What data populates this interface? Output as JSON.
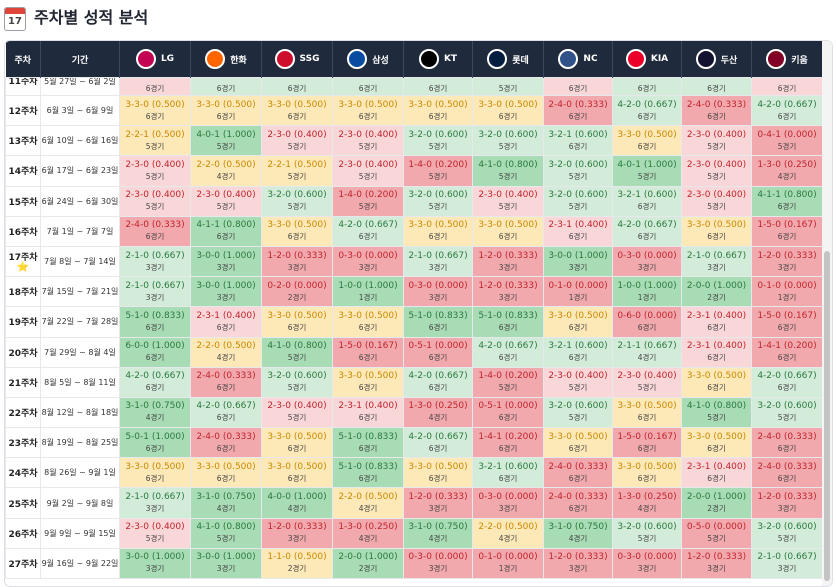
{
  "header": {
    "title": "주차별 성적 분석",
    "calendar_day": "17"
  },
  "table": {
    "columns": {
      "week": "주차",
      "period": "기간"
    },
    "teams": [
      {
        "name": "LG",
        "color": "#c30452"
      },
      {
        "name": "한화",
        "color": "#ff6600"
      },
      {
        "name": "SSG",
        "color": "#ce0e2d"
      },
      {
        "name": "삼성",
        "color": "#074ca1"
      },
      {
        "name": "KT",
        "color": "#000000"
      },
      {
        "name": "롯데",
        "color": "#041e42"
      },
      {
        "name": "NC",
        "color": "#315288"
      },
      {
        "name": "KIA",
        "color": "#ea0029"
      },
      {
        "name": "두산",
        "color": "#131230"
      },
      {
        "name": "키움",
        "color": "#820024"
      }
    ],
    "palette": {
      "green": "#d3ecd9",
      "green_dark": "#a8dcb5",
      "yellow": "#fde8b8",
      "pink": "#f9d7d9",
      "red": "#f2a9ad",
      "text_green": "#2a7a3e",
      "text_yellow": "#c98a00",
      "text_red": "#c0242c"
    },
    "rows": [
      {
        "week": "11주차",
        "period": "5월 27일 ~ 6월 2일",
        "cells": [
          [
            "",
            "6경기",
            "pink"
          ],
          [
            "",
            "6경기",
            "green"
          ],
          [
            "",
            "6경기",
            "green"
          ],
          [
            "",
            "6경기",
            "green"
          ],
          [
            "",
            "6경기",
            "green"
          ],
          [
            "",
            "5경기",
            "green"
          ],
          [
            "",
            "6경기",
            "pink"
          ],
          [
            "",
            "6경기",
            "green"
          ],
          [
            "",
            "6경기",
            "green"
          ],
          [
            "",
            "6경기",
            "pink"
          ]
        ]
      },
      {
        "week": "12주차",
        "period": "6월 3일 ~ 6월 9일",
        "cells": [
          [
            "3-3-0 (0.500)",
            "6경기",
            "yellow"
          ],
          [
            "3-3-0 (0.500)",
            "6경기",
            "yellow"
          ],
          [
            "3-3-0 (0.500)",
            "6경기",
            "yellow"
          ],
          [
            "3-3-0 (0.500)",
            "6경기",
            "yellow"
          ],
          [
            "3-3-0 (0.500)",
            "6경기",
            "yellow"
          ],
          [
            "3-3-0 (0.500)",
            "6경기",
            "yellow"
          ],
          [
            "2-4-0 (0.333)",
            "6경기",
            "red"
          ],
          [
            "4-2-0 (0.667)",
            "6경기",
            "green"
          ],
          [
            "2-4-0 (0.333)",
            "6경기",
            "red"
          ],
          [
            "4-2-0 (0.667)",
            "6경기",
            "green"
          ]
        ]
      },
      {
        "week": "13주차",
        "period": "6월 10일 ~ 6월 16일",
        "cells": [
          [
            "2-2-1 (0.500)",
            "5경기",
            "yellow"
          ],
          [
            "4-0-1 (1.000)",
            "5경기",
            "green_dark"
          ],
          [
            "2-3-0 (0.400)",
            "5경기",
            "pink"
          ],
          [
            "2-3-0 (0.400)",
            "5경기",
            "pink"
          ],
          [
            "3-2-0 (0.600)",
            "5경기",
            "green"
          ],
          [
            "3-2-0 (0.600)",
            "5경기",
            "green"
          ],
          [
            "3-2-1 (0.600)",
            "6경기",
            "green"
          ],
          [
            "3-3-0 (0.500)",
            "6경기",
            "yellow"
          ],
          [
            "2-3-0 (0.400)",
            "5경기",
            "pink"
          ],
          [
            "0-4-1 (0.000)",
            "5경기",
            "red"
          ]
        ]
      },
      {
        "week": "14주차",
        "period": "6월 17일 ~ 6월 23일",
        "cells": [
          [
            "2-3-0 (0.400)",
            "5경기",
            "pink"
          ],
          [
            "2-2-0 (0.500)",
            "4경기",
            "yellow"
          ],
          [
            "2-2-1 (0.500)",
            "5경기",
            "yellow"
          ],
          [
            "2-3-0 (0.400)",
            "5경기",
            "pink"
          ],
          [
            "1-4-0 (0.200)",
            "5경기",
            "red"
          ],
          [
            "4-1-0 (0.800)",
            "5경기",
            "green_dark"
          ],
          [
            "3-2-0 (0.600)",
            "5경기",
            "green"
          ],
          [
            "4-0-1 (1.000)",
            "5경기",
            "green_dark"
          ],
          [
            "2-3-0 (0.400)",
            "5경기",
            "pink"
          ],
          [
            "1-3-0 (0.250)",
            "4경기",
            "red"
          ]
        ]
      },
      {
        "week": "15주차",
        "period": "6월 24일 ~ 6월 30일",
        "cells": [
          [
            "2-3-0 (0.400)",
            "5경기",
            "pink"
          ],
          [
            "2-3-0 (0.400)",
            "5경기",
            "pink"
          ],
          [
            "3-2-0 (0.600)",
            "5경기",
            "green"
          ],
          [
            "1-4-0 (0.200)",
            "5경기",
            "red"
          ],
          [
            "3-2-0 (0.600)",
            "5경기",
            "green"
          ],
          [
            "2-3-0 (0.400)",
            "5경기",
            "pink"
          ],
          [
            "3-2-0 (0.600)",
            "5경기",
            "green"
          ],
          [
            "3-2-1 (0.600)",
            "6경기",
            "green"
          ],
          [
            "2-3-0 (0.400)",
            "5경기",
            "pink"
          ],
          [
            "4-1-1 (0.800)",
            "6경기",
            "green_dark"
          ]
        ]
      },
      {
        "week": "16주차",
        "period": "7월 1일 ~ 7월 7일",
        "cells": [
          [
            "2-4-0 (0.333)",
            "6경기",
            "red"
          ],
          [
            "4-1-1 (0.800)",
            "6경기",
            "green_dark"
          ],
          [
            "3-3-0 (0.500)",
            "6경기",
            "yellow"
          ],
          [
            "4-2-0 (0.667)",
            "6경기",
            "green"
          ],
          [
            "3-3-0 (0.500)",
            "6경기",
            "yellow"
          ],
          [
            "3-3-0 (0.500)",
            "6경기",
            "yellow"
          ],
          [
            "2-3-1 (0.400)",
            "6경기",
            "pink"
          ],
          [
            "4-2-0 (0.667)",
            "6경기",
            "green"
          ],
          [
            "3-3-0 (0.500)",
            "6경기",
            "yellow"
          ],
          [
            "1-5-0 (0.167)",
            "6경기",
            "red"
          ]
        ]
      },
      {
        "week": "17주차",
        "star": "⭐",
        "period": "7월 8일 ~ 7월 14일",
        "cells": [
          [
            "2-1-0 (0.667)",
            "3경기",
            "green"
          ],
          [
            "3-0-0 (1.000)",
            "3경기",
            "green_dark"
          ],
          [
            "1-2-0 (0.333)",
            "3경기",
            "red"
          ],
          [
            "0-3-0 (0.000)",
            "3경기",
            "red"
          ],
          [
            "2-1-0 (0.667)",
            "3경기",
            "green"
          ],
          [
            "1-2-0 (0.333)",
            "3경기",
            "red"
          ],
          [
            "3-0-0 (1.000)",
            "3경기",
            "green_dark"
          ],
          [
            "0-3-0 (0.000)",
            "3경기",
            "red"
          ],
          [
            "2-1-0 (0.667)",
            "3경기",
            "green"
          ],
          [
            "1-2-0 (0.333)",
            "3경기",
            "red"
          ]
        ]
      },
      {
        "week": "18주차",
        "period": "7월 15일 ~ 7월 21일",
        "cells": [
          [
            "2-1-0 (0.667)",
            "3경기",
            "green"
          ],
          [
            "3-0-0 (1.000)",
            "3경기",
            "green_dark"
          ],
          [
            "0-2-0 (0.000)",
            "2경기",
            "red"
          ],
          [
            "1-0-0 (1.000)",
            "1경기",
            "green_dark"
          ],
          [
            "0-3-0 (0.000)",
            "3경기",
            "red"
          ],
          [
            "1-2-0 (0.333)",
            "3경기",
            "red"
          ],
          [
            "0-1-0 (0.000)",
            "1경기",
            "red"
          ],
          [
            "1-0-0 (1.000)",
            "1경기",
            "green_dark"
          ],
          [
            "2-0-0 (1.000)",
            "2경기",
            "green_dark"
          ],
          [
            "0-1-0 (0.000)",
            "1경기",
            "red"
          ]
        ]
      },
      {
        "week": "19주차",
        "period": "7월 22일 ~ 7월 28일",
        "cells": [
          [
            "5-1-0 (0.833)",
            "6경기",
            "green_dark"
          ],
          [
            "2-3-1 (0.400)",
            "6경기",
            "pink"
          ],
          [
            "3-3-0 (0.500)",
            "6경기",
            "yellow"
          ],
          [
            "3-3-0 (0.500)",
            "6경기",
            "yellow"
          ],
          [
            "5-1-0 (0.833)",
            "6경기",
            "green_dark"
          ],
          [
            "5-1-0 (0.833)",
            "6경기",
            "green_dark"
          ],
          [
            "3-3-0 (0.500)",
            "6경기",
            "yellow"
          ],
          [
            "0-6-0 (0.000)",
            "6경기",
            "red"
          ],
          [
            "2-3-1 (0.400)",
            "6경기",
            "pink"
          ],
          [
            "1-5-0 (0.167)",
            "6경기",
            "red"
          ]
        ]
      },
      {
        "week": "20주차",
        "period": "7월 29일 ~ 8월 4일",
        "cells": [
          [
            "6-0-0 (1.000)",
            "6경기",
            "green_dark"
          ],
          [
            "2-2-0 (0.500)",
            "4경기",
            "yellow"
          ],
          [
            "4-1-0 (0.800)",
            "5경기",
            "green_dark"
          ],
          [
            "1-5-0 (0.167)",
            "6경기",
            "red"
          ],
          [
            "0-5-1 (0.000)",
            "6경기",
            "red"
          ],
          [
            "4-2-0 (0.667)",
            "6경기",
            "green"
          ],
          [
            "3-2-1 (0.600)",
            "6경기",
            "green"
          ],
          [
            "2-1-1 (0.667)",
            "4경기",
            "green"
          ],
          [
            "2-3-1 (0.400)",
            "6경기",
            "pink"
          ],
          [
            "1-4-1 (0.200)",
            "6경기",
            "red"
          ]
        ]
      },
      {
        "week": "21주차",
        "period": "8월 5일 ~ 8월 11일",
        "cells": [
          [
            "4-2-0 (0.667)",
            "6경기",
            "green"
          ],
          [
            "2-4-0 (0.333)",
            "6경기",
            "red"
          ],
          [
            "3-2-0 (0.600)",
            "5경기",
            "green"
          ],
          [
            "3-3-0 (0.500)",
            "6경기",
            "yellow"
          ],
          [
            "4-2-0 (0.667)",
            "6경기",
            "green"
          ],
          [
            "1-4-0 (0.200)",
            "5경기",
            "red"
          ],
          [
            "2-3-0 (0.400)",
            "5경기",
            "pink"
          ],
          [
            "2-3-0 (0.400)",
            "5경기",
            "pink"
          ],
          [
            "3-3-0 (0.500)",
            "6경기",
            "yellow"
          ],
          [
            "4-2-0 (0.667)",
            "6경기",
            "green"
          ]
        ]
      },
      {
        "week": "22주차",
        "period": "8월 12일 ~ 8월 18일",
        "cells": [
          [
            "3-1-0 (0.750)",
            "4경기",
            "green_dark"
          ],
          [
            "4-2-0 (0.667)",
            "6경기",
            "green"
          ],
          [
            "2-3-0 (0.400)",
            "5경기",
            "pink"
          ],
          [
            "2-3-1 (0.400)",
            "6경기",
            "pink"
          ],
          [
            "1-3-0 (0.250)",
            "4경기",
            "red"
          ],
          [
            "0-5-1 (0.000)",
            "6경기",
            "red"
          ],
          [
            "3-2-0 (0.600)",
            "5경기",
            "green"
          ],
          [
            "3-3-0 (0.500)",
            "6경기",
            "yellow"
          ],
          [
            "4-1-0 (0.800)",
            "5경기",
            "green_dark"
          ],
          [
            "3-2-0 (0.600)",
            "5경기",
            "green"
          ]
        ]
      },
      {
        "week": "23주차",
        "period": "8월 19일 ~ 8월 25일",
        "cells": [
          [
            "5-0-1 (1.000)",
            "6경기",
            "green_dark"
          ],
          [
            "2-4-0 (0.333)",
            "6경기",
            "red"
          ],
          [
            "3-3-0 (0.500)",
            "6경기",
            "yellow"
          ],
          [
            "5-1-0 (0.833)",
            "6경기",
            "green_dark"
          ],
          [
            "4-2-0 (0.667)",
            "6경기",
            "green"
          ],
          [
            "1-4-1 (0.200)",
            "6경기",
            "red"
          ],
          [
            "3-3-0 (0.500)",
            "6경기",
            "yellow"
          ],
          [
            "1-5-0 (0.167)",
            "6경기",
            "red"
          ],
          [
            "3-3-0 (0.500)",
            "6경기",
            "yellow"
          ],
          [
            "2-4-0 (0.333)",
            "6경기",
            "red"
          ]
        ]
      },
      {
        "week": "24주차",
        "period": "8월 26일 ~ 9월 1일",
        "cells": [
          [
            "3-3-0 (0.500)",
            "6경기",
            "yellow"
          ],
          [
            "3-3-0 (0.500)",
            "6경기",
            "yellow"
          ],
          [
            "3-3-0 (0.500)",
            "6경기",
            "yellow"
          ],
          [
            "5-1-0 (0.833)",
            "6경기",
            "green_dark"
          ],
          [
            "3-3-0 (0.500)",
            "6경기",
            "yellow"
          ],
          [
            "3-2-1 (0.600)",
            "6경기",
            "green"
          ],
          [
            "2-4-0 (0.333)",
            "6경기",
            "red"
          ],
          [
            "3-3-0 (0.500)",
            "6경기",
            "yellow"
          ],
          [
            "2-3-1 (0.400)",
            "6경기",
            "pink"
          ],
          [
            "2-4-0 (0.333)",
            "6경기",
            "red"
          ]
        ]
      },
      {
        "week": "25주차",
        "period": "9월 2일 ~ 9월 8일",
        "cells": [
          [
            "2-1-0 (0.667)",
            "3경기",
            "green"
          ],
          [
            "3-1-0 (0.750)",
            "4경기",
            "green_dark"
          ],
          [
            "4-0-0 (1.000)",
            "4경기",
            "green_dark"
          ],
          [
            "2-2-0 (0.500)",
            "4경기",
            "yellow"
          ],
          [
            "1-2-0 (0.333)",
            "3경기",
            "red"
          ],
          [
            "0-3-0 (0.000)",
            "3경기",
            "red"
          ],
          [
            "2-4-0 (0.333)",
            "6경기",
            "red"
          ],
          [
            "1-3-0 (0.250)",
            "4경기",
            "red"
          ],
          [
            "2-0-0 (1.000)",
            "2경기",
            "green_dark"
          ],
          [
            "1-2-0 (0.333)",
            "3경기",
            "red"
          ]
        ]
      },
      {
        "week": "26주차",
        "period": "9월 9일 ~ 9월 15일",
        "cells": [
          [
            "2-3-0 (0.400)",
            "5경기",
            "pink"
          ],
          [
            "4-1-0 (0.800)",
            "5경기",
            "green_dark"
          ],
          [
            "1-2-0 (0.333)",
            "3경기",
            "red"
          ],
          [
            "1-3-0 (0.250)",
            "4경기",
            "red"
          ],
          [
            "3-1-0 (0.750)",
            "4경기",
            "green_dark"
          ],
          [
            "2-2-0 (0.500)",
            "4경기",
            "yellow"
          ],
          [
            "3-1-0 (0.750)",
            "4경기",
            "green_dark"
          ],
          [
            "3-2-0 (0.600)",
            "5경기",
            "green"
          ],
          [
            "0-5-0 (0.000)",
            "5경기",
            "red"
          ],
          [
            "3-2-0 (0.600)",
            "5경기",
            "green"
          ]
        ]
      },
      {
        "week": "27주차",
        "period": "9월 16일 ~ 9월 22일",
        "cells": [
          [
            "3-0-0 (1.000)",
            "3경기",
            "green_dark"
          ],
          [
            "3-0-0 (1.000)",
            "3경기",
            "green_dark"
          ],
          [
            "1-1-0 (0.500)",
            "2경기",
            "yellow"
          ],
          [
            "2-0-0 (1.000)",
            "2경기",
            "green_dark"
          ],
          [
            "0-3-0 (0.000)",
            "3경기",
            "red"
          ],
          [
            "0-1-0 (0.000)",
            "1경기",
            "red"
          ],
          [
            "1-2-0 (0.333)",
            "3경기",
            "red"
          ],
          [
            "0-3-0 (0.000)",
            "3경기",
            "red"
          ],
          [
            "1-2-0 (0.333)",
            "3경기",
            "red"
          ],
          [
            "2-1-0 (0.667)",
            "3경기",
            "green"
          ]
        ]
      }
    ]
  }
}
